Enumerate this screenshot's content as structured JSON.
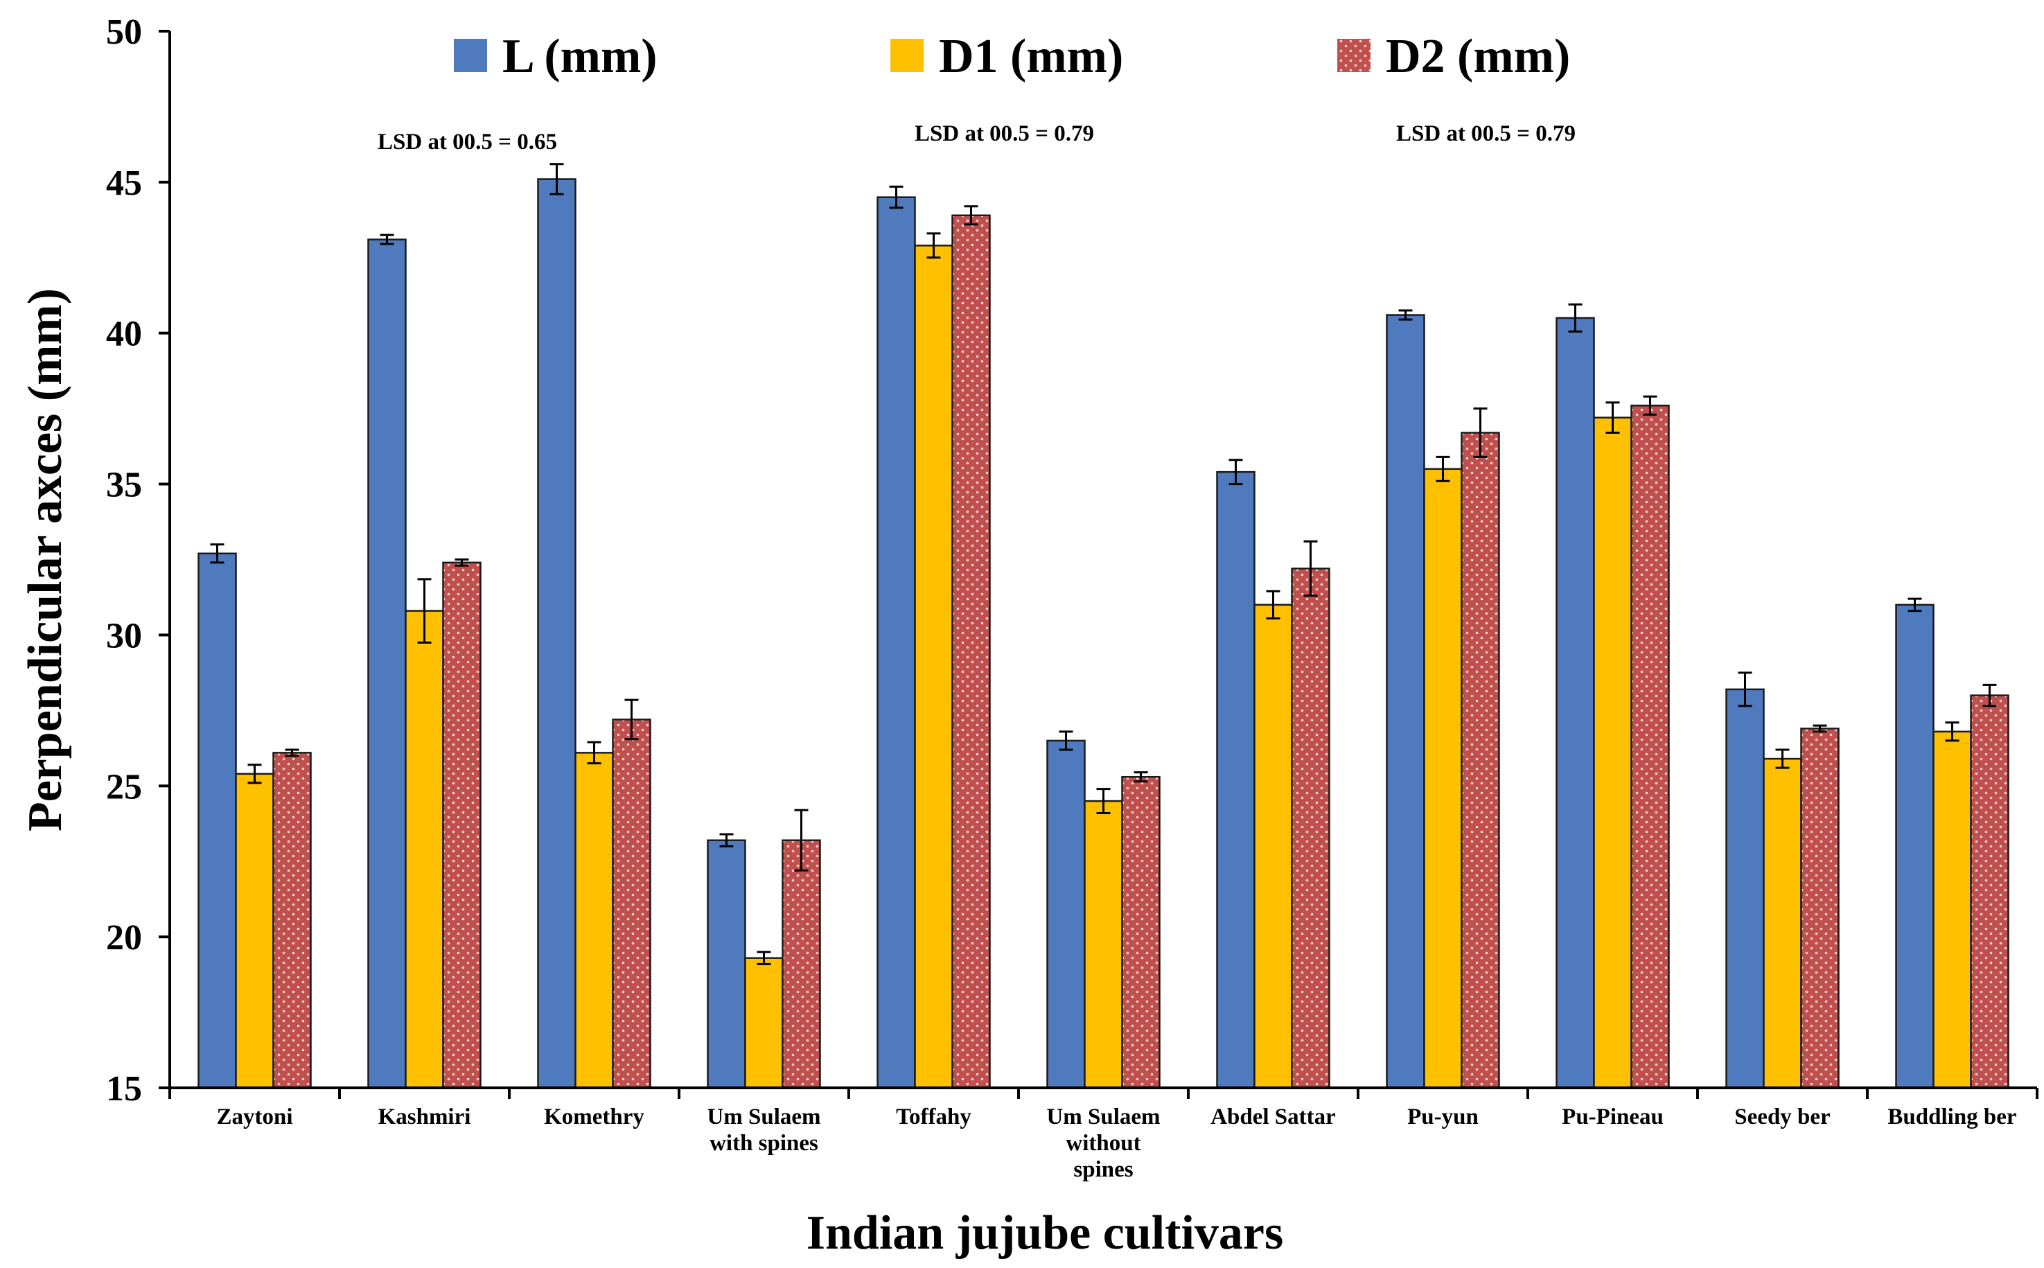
{
  "chart_data": {
    "type": "bar",
    "title": "",
    "xlabel": "Indian jujube cultivars",
    "ylabel": "Perpendicular axces (mm)",
    "ylim": [
      15,
      50
    ],
    "yticks": [
      15,
      20,
      25,
      30,
      35,
      40,
      45,
      50
    ],
    "ytick_labels": [
      "15",
      "20",
      "25",
      "30",
      "35",
      "40",
      "45",
      "50"
    ],
    "grid": false,
    "legend_position": "top",
    "categories": [
      [
        "Zaytoni"
      ],
      [
        "Kashmiri"
      ],
      [
        "Komethry"
      ],
      [
        "Um Sulaem",
        "with spines"
      ],
      [
        "Toffahy"
      ],
      [
        "Um Sulaem",
        "without",
        "spines"
      ],
      [
        "Abdel Sattar"
      ],
      [
        "Pu-yun"
      ],
      [
        "Pu-Pineau"
      ],
      [
        "Seedy ber"
      ],
      [
        "Buddling ber"
      ]
    ],
    "series": [
      {
        "name": "L (mm)",
        "color": "#4F7BBE",
        "pattern": "solid",
        "values": [
          32.7,
          43.1,
          45.1,
          23.2,
          44.5,
          26.5,
          35.4,
          40.6,
          40.5,
          28.2,
          31.0
        ],
        "errors": [
          0.3,
          0.15,
          0.5,
          0.2,
          0.35,
          0.3,
          0.4,
          0.15,
          0.45,
          0.55,
          0.2
        ]
      },
      {
        "name": "D1 (mm)",
        "color": "#FFC000",
        "pattern": "solid",
        "values": [
          25.4,
          30.8,
          26.1,
          19.3,
          42.9,
          24.5,
          31.0,
          35.5,
          37.2,
          25.9,
          26.8
        ],
        "errors": [
          0.3,
          1.05,
          0.35,
          0.2,
          0.4,
          0.4,
          0.45,
          0.4,
          0.5,
          0.3,
          0.3
        ]
      },
      {
        "name": "D2 (mm)",
        "color": "#C0504D",
        "pattern": "dotted",
        "values": [
          26.1,
          32.4,
          27.2,
          23.2,
          43.9,
          25.3,
          32.2,
          36.7,
          37.6,
          26.9,
          28.0
        ],
        "errors": [
          0.1,
          0.1,
          0.65,
          1.0,
          0.3,
          0.15,
          0.9,
          0.8,
          0.3,
          0.1,
          0.35
        ]
      }
    ],
    "annotations": [
      {
        "text": "LSD at 00.5 = 0.65",
        "near_category": 1
      },
      {
        "text": "LSD at 00.5 = 0.79",
        "near_category": 4
      },
      {
        "text": "LSD at 00.5 = 0.79",
        "near_category": 7
      }
    ]
  }
}
